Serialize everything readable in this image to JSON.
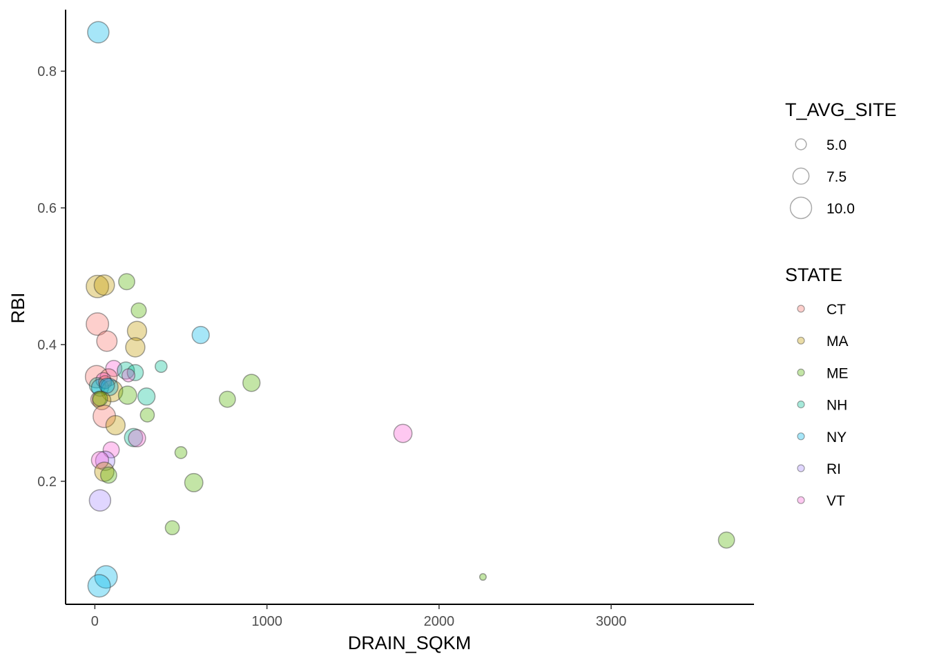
{
  "chart_data": {
    "type": "scatter",
    "title": "",
    "xlabel": "DRAIN_SQKM",
    "ylabel": "RBI",
    "xlim": [
      -170,
      3830
    ],
    "ylim": [
      0.02,
      0.89
    ],
    "x_ticks": [
      0,
      1000,
      2000,
      3000
    ],
    "x_tick_labels": [
      "0",
      "1000",
      "2000",
      "3000"
    ],
    "y_ticks": [
      0.2,
      0.4,
      0.6,
      0.8
    ],
    "y_tick_labels": [
      "0.2",
      "0.4",
      "0.6",
      "0.8"
    ],
    "grid": false,
    "size_legend": {
      "title": "T_AVG_SITE",
      "breaks": [
        5.0,
        7.5,
        10.0
      ],
      "labels": [
        "5.0",
        "7.5",
        "10.0"
      ]
    },
    "color_legend": {
      "title": "STATE",
      "entries": [
        {
          "label": "CT",
          "color": "#F8766D"
        },
        {
          "label": "MA",
          "color": "#C49A00"
        },
        {
          "label": "ME",
          "color": "#53B400"
        },
        {
          "label": "NH",
          "color": "#00C094"
        },
        {
          "label": "NY",
          "color": "#00B6EB"
        },
        {
          "label": "RI",
          "color": "#A58AFF"
        },
        {
          "label": "VT",
          "color": "#FB61D7"
        }
      ]
    },
    "legend_position": "right",
    "size_range_t": [
      2.5,
      11.0
    ],
    "points": [
      {
        "x": 20,
        "y": 0.857,
        "t": 10.0,
        "state": "NY"
      },
      {
        "x": 15,
        "y": 0.485,
        "t": 10.5,
        "state": "MA"
      },
      {
        "x": 55,
        "y": 0.487,
        "t": 9.5,
        "state": "MA"
      },
      {
        "x": 185,
        "y": 0.492,
        "t": 7.5,
        "state": "ME"
      },
      {
        "x": 15,
        "y": 0.43,
        "t": 10.5,
        "state": "CT"
      },
      {
        "x": 70,
        "y": 0.405,
        "t": 9.5,
        "state": "CT"
      },
      {
        "x": 255,
        "y": 0.45,
        "t": 7.0,
        "state": "ME"
      },
      {
        "x": 245,
        "y": 0.42,
        "t": 9.0,
        "state": "MA"
      },
      {
        "x": 235,
        "y": 0.396,
        "t": 9.0,
        "state": "MA"
      },
      {
        "x": 615,
        "y": 0.414,
        "t": 8.0,
        "state": "NY"
      },
      {
        "x": 10,
        "y": 0.353,
        "t": 10.5,
        "state": "CT"
      },
      {
        "x": 110,
        "y": 0.365,
        "t": 7.5,
        "state": "VT"
      },
      {
        "x": 180,
        "y": 0.362,
        "t": 8.0,
        "state": "NH"
      },
      {
        "x": 235,
        "y": 0.359,
        "t": 7.5,
        "state": "NH"
      },
      {
        "x": 195,
        "y": 0.355,
        "t": 6.0,
        "state": "VT"
      },
      {
        "x": 80,
        "y": 0.352,
        "t": 8.0,
        "state": "CT"
      },
      {
        "x": 50,
        "y": 0.348,
        "t": 7.0,
        "state": "VT"
      },
      {
        "x": 385,
        "y": 0.368,
        "t": 5.5,
        "state": "NH"
      },
      {
        "x": 910,
        "y": 0.344,
        "t": 8.0,
        "state": "ME"
      },
      {
        "x": 15,
        "y": 0.34,
        "t": 7.5,
        "state": "NH"
      },
      {
        "x": 30,
        "y": 0.337,
        "t": 8.0,
        "state": "NY"
      },
      {
        "x": 100,
        "y": 0.332,
        "t": 10.0,
        "state": "MA"
      },
      {
        "x": 60,
        "y": 0.345,
        "t": 6.0,
        "state": "CT"
      },
      {
        "x": 85,
        "y": 0.338,
        "t": 8.0,
        "state": "NY"
      },
      {
        "x": 70,
        "y": 0.34,
        "t": 7.0,
        "state": "NY"
      },
      {
        "x": 190,
        "y": 0.326,
        "t": 8.5,
        "state": "ME"
      },
      {
        "x": 300,
        "y": 0.324,
        "t": 8.0,
        "state": "NH"
      },
      {
        "x": 770,
        "y": 0.32,
        "t": 7.5,
        "state": "ME"
      },
      {
        "x": 20,
        "y": 0.32,
        "t": 7.0,
        "state": "CT"
      },
      {
        "x": 40,
        "y": 0.318,
        "t": 8.5,
        "state": "MA"
      },
      {
        "x": 30,
        "y": 0.321,
        "t": 7.0,
        "state": "ME"
      },
      {
        "x": 55,
        "y": 0.295,
        "t": 10.5,
        "state": "CT"
      },
      {
        "x": 305,
        "y": 0.297,
        "t": 6.5,
        "state": "ME"
      },
      {
        "x": 120,
        "y": 0.282,
        "t": 9.0,
        "state": "MA"
      },
      {
        "x": 1790,
        "y": 0.27,
        "t": 8.5,
        "state": "VT"
      },
      {
        "x": 225,
        "y": 0.264,
        "t": 8.5,
        "state": "NH"
      },
      {
        "x": 245,
        "y": 0.263,
        "t": 8.0,
        "state": "VT"
      },
      {
        "x": 95,
        "y": 0.246,
        "t": 7.5,
        "state": "VT"
      },
      {
        "x": 500,
        "y": 0.242,
        "t": 5.5,
        "state": "ME"
      },
      {
        "x": 60,
        "y": 0.23,
        "t": 9.0,
        "state": "RI"
      },
      {
        "x": 30,
        "y": 0.231,
        "t": 8.0,
        "state": "VT"
      },
      {
        "x": 55,
        "y": 0.214,
        "t": 9.0,
        "state": "MA"
      },
      {
        "x": 80,
        "y": 0.209,
        "t": 7.5,
        "state": "ME"
      },
      {
        "x": 575,
        "y": 0.198,
        "t": 8.5,
        "state": "ME"
      },
      {
        "x": 30,
        "y": 0.172,
        "t": 10.0,
        "state": "RI"
      },
      {
        "x": 450,
        "y": 0.132,
        "t": 6.5,
        "state": "ME"
      },
      {
        "x": 3670,
        "y": 0.114,
        "t": 7.5,
        "state": "ME"
      },
      {
        "x": 65,
        "y": 0.06,
        "t": 10.5,
        "state": "NY"
      },
      {
        "x": 25,
        "y": 0.047,
        "t": 10.5,
        "state": "NY"
      },
      {
        "x": 2255,
        "y": 0.06,
        "t": 3.0,
        "state": "ME"
      }
    ]
  }
}
